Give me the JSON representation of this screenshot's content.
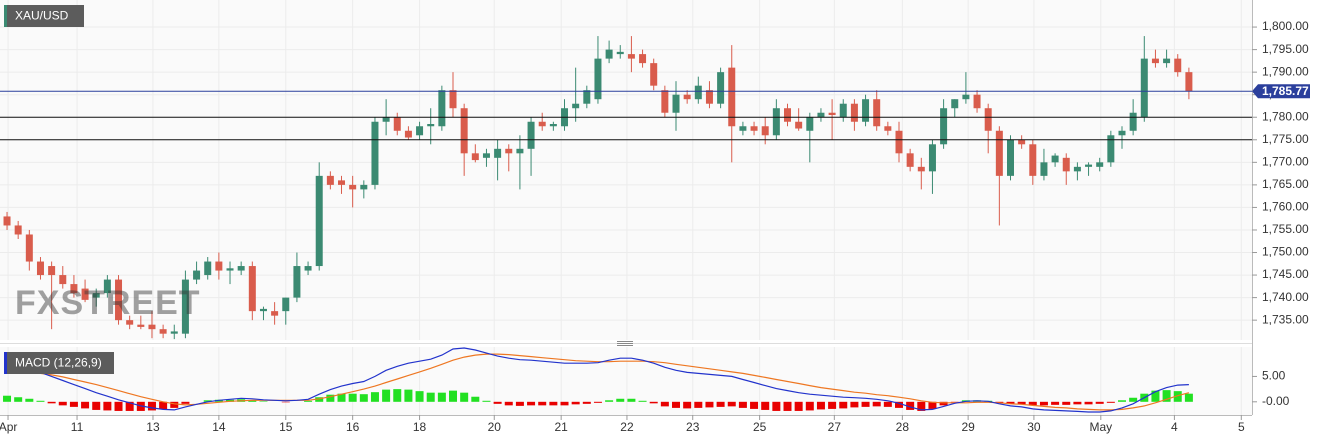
{
  "chart_data": [
    {
      "type": "candlestick",
      "title": "XAU/USD",
      "watermark": "FXSTREET",
      "open": [
        1758,
        1756,
        1754,
        1748,
        1747,
        1745,
        1743,
        1742,
        1740,
        1741,
        1744,
        1735,
        1734,
        1734,
        1733,
        1732,
        1732,
        1744,
        1745,
        1748,
        1746,
        1746,
        1747,
        1737,
        1737,
        1737,
        1740,
        1746,
        1747,
        1767,
        1766,
        1765,
        1764,
        1765,
        1779,
        1780,
        1777,
        1776,
        1778,
        1778,
        1786,
        1782,
        1772,
        1771,
        1771,
        1773,
        1772,
        1773,
        1779,
        1778,
        1778,
        1782,
        1783,
        1784,
        1793,
        1794,
        1794,
        1794,
        1792,
        1786,
        1781,
        1785,
        1784,
        1786,
        1783,
        1791,
        1777,
        1778,
        1778,
        1776,
        1782,
        1779,
        1777,
        1780,
        1781,
        1780,
        1783,
        1779,
        1784,
        1778,
        1777,
        1772,
        1769,
        1768,
        1774,
        1782,
        1784,
        1785,
        1782,
        1777,
        1767,
        1775,
        1774,
        1767,
        1770,
        1771,
        1768,
        1769,
        1769,
        1770,
        1776,
        1777,
        1780,
        1793,
        1792,
        1793,
        1790
      ],
      "high": [
        1759,
        1757,
        1755,
        1749,
        1748,
        1747,
        1745,
        1744,
        1742,
        1745,
        1745,
        1736,
        1736,
        1737,
        1734,
        1734,
        1746,
        1748,
        1749,
        1750,
        1748,
        1748,
        1748,
        1738,
        1739,
        1740,
        1750,
        1748,
        1770,
        1768,
        1767,
        1767,
        1766,
        1780,
        1784,
        1781,
        1778,
        1779,
        1782,
        1787,
        1790,
        1783,
        1774,
        1773,
        1775,
        1774,
        1776,
        1780,
        1781,
        1779,
        1784,
        1791,
        1787,
        1798,
        1797,
        1796,
        1798,
        1795,
        1793,
        1787,
        1788,
        1786,
        1789,
        1788,
        1791,
        1796,
        1779,
        1779,
        1780,
        1784,
        1783,
        1782,
        1781,
        1782,
        1784,
        1784,
        1784,
        1785,
        1786,
        1779,
        1779,
        1773,
        1771,
        1775,
        1784,
        1784,
        1790,
        1786,
        1783,
        1778,
        1776,
        1776,
        1775,
        1773,
        1772,
        1772,
        1770,
        1770,
        1771,
        1777,
        1778,
        1784,
        1798,
        1795,
        1795,
        1794,
        1791
      ],
      "low": [
        1755,
        1753,
        1746,
        1744,
        1733,
        1742,
        1740,
        1739,
        1738,
        1740,
        1734,
        1733,
        1733,
        1731,
        1731,
        1730.8,
        1731,
        1743,
        1744,
        1744,
        1743,
        1745,
        1735,
        1735,
        1734,
        1734,
        1739,
        1745,
        1746,
        1764,
        1763,
        1760,
        1762,
        1764,
        1776,
        1776,
        1775,
        1775,
        1774,
        1777,
        1780,
        1767,
        1770,
        1769,
        1766,
        1768,
        1764,
        1767,
        1777,
        1777,
        1777,
        1779,
        1782,
        1783,
        1792,
        1793,
        1790,
        1791,
        1786,
        1780,
        1777,
        1783,
        1783,
        1782,
        1782,
        1770,
        1776,
        1776,
        1774,
        1775,
        1778,
        1777,
        1770,
        1779,
        1775,
        1779,
        1777,
        1778,
        1777,
        1776,
        1770,
        1768,
        1764,
        1763,
        1773,
        1780,
        1783,
        1781,
        1772,
        1756,
        1766,
        1773,
        1765,
        1766,
        1769,
        1765,
        1766,
        1767,
        1768,
        1769,
        1773,
        1776,
        1779,
        1791,
        1791,
        1789,
        1784
      ],
      "close": [
        1756,
        1754,
        1748,
        1745,
        1745,
        1743,
        1741,
        1739.5,
        1741,
        1744,
        1735,
        1734,
        1733.5,
        1733,
        1732,
        1732.5,
        1744,
        1746,
        1748,
        1746,
        1746.5,
        1747,
        1737,
        1737.5,
        1736,
        1740,
        1747,
        1747,
        1767,
        1765,
        1765,
        1764,
        1765,
        1779,
        1780,
        1777,
        1775.5,
        1778,
        1778.5,
        1786,
        1782,
        1772,
        1770.5,
        1772,
        1773,
        1772,
        1773,
        1779,
        1778,
        1778.5,
        1782,
        1783,
        1786,
        1793,
        1795,
        1794.5,
        1793,
        1792,
        1787,
        1781,
        1785,
        1784,
        1787,
        1783,
        1790,
        1778,
        1778,
        1777,
        1776,
        1782,
        1779,
        1777.5,
        1780,
        1781,
        1780.5,
        1783,
        1779,
        1784,
        1778,
        1777,
        1772,
        1769,
        1768,
        1774,
        1782,
        1784,
        1785,
        1782,
        1777,
        1767,
        1775,
        1774,
        1767,
        1770,
        1771.5,
        1768,
        1769,
        1769.5,
        1770,
        1776,
        1777,
        1781,
        1793,
        1792,
        1793,
        1790,
        1785.77
      ],
      "up_color": "#3b8a72",
      "down_color": "#d95c4c",
      "xlim": [
        -0.63,
        111.66
      ],
      "xticks": [
        {
          "value": 0.09,
          "label": "Apr"
        },
        {
          "value": 6.28,
          "label": "11"
        },
        {
          "value": 13.09,
          "label": "13"
        },
        {
          "value": 19.0,
          "label": "14"
        },
        {
          "value": 25.0,
          "label": "15"
        },
        {
          "value": 31.0,
          "label": "16"
        },
        {
          "value": 37.0,
          "label": "18"
        },
        {
          "value": 43.7,
          "label": "20"
        },
        {
          "value": 49.7,
          "label": "21"
        },
        {
          "value": 55.6,
          "label": "22"
        },
        {
          "value": 61.5,
          "label": "23"
        },
        {
          "value": 67.5,
          "label": "25"
        },
        {
          "value": 74.2,
          "label": "27"
        },
        {
          "value": 80.3,
          "label": "28"
        },
        {
          "value": 86.2,
          "label": "29"
        },
        {
          "value": 92.1,
          "label": "30"
        },
        {
          "value": 98.1,
          "label": "May"
        },
        {
          "value": 104.7,
          "label": "4"
        },
        {
          "value": 110.7,
          "label": "5"
        }
      ],
      "ylim": [
        1730.6,
        1806
      ],
      "yticks": [
        {
          "value": 1735,
          "label": "1,735.00"
        },
        {
          "value": 1740,
          "label": "1,740.00"
        },
        {
          "value": 1745,
          "label": "1,745.00"
        },
        {
          "value": 1750,
          "label": "1,750.00"
        },
        {
          "value": 1755,
          "label": "1,755.00"
        },
        {
          "value": 1760,
          "label": "1,760.00"
        },
        {
          "value": 1765,
          "label": "1,765.00"
        },
        {
          "value": 1770,
          "label": "1,770.00"
        },
        {
          "value": 1775,
          "label": "1,775.00"
        },
        {
          "value": 1780,
          "label": "1,780.00"
        },
        {
          "value": 1785,
          "label": "1,785.00"
        },
        {
          "value": 1790,
          "label": "1,790.00"
        },
        {
          "value": 1795,
          "label": "1,795.00"
        },
        {
          "value": 1800,
          "label": "1,800.00"
        }
      ],
      "grid": true,
      "levels": [
        1780,
        1775
      ],
      "level_color": "#111111",
      "last_price": {
        "value": 1785.77,
        "label": "1,785.77"
      },
      "last_price_color": "#2b3f9c"
    },
    {
      "type": "macd",
      "title": "MACD (12,26,9)",
      "histogram": [
        1.2,
        0.9,
        0.6,
        0.2,
        -0.3,
        -0.7,
        -1.0,
        -1.3,
        -1.6,
        -1.7,
        -1.8,
        -1.8,
        -1.8,
        -1.7,
        -1.5,
        -1.2,
        -0.4,
        0.0,
        0.3,
        0.4,
        0.4,
        0.5,
        0.3,
        0.1,
        0.0,
        -0.1,
        0.0,
        0.2,
        0.9,
        1.4,
        1.6,
        1.6,
        1.5,
        1.9,
        2.4,
        2.5,
        2.4,
        2.1,
        1.8,
        1.8,
        2.2,
        1.8,
        1.0,
        0.2,
        -0.4,
        -0.7,
        -0.8,
        -0.7,
        -0.7,
        -0.7,
        -0.7,
        -0.5,
        -0.4,
        -0.2,
        0.3,
        0.6,
        0.6,
        0.2,
        -0.3,
        -0.9,
        -1.2,
        -1.3,
        -1.2,
        -1.1,
        -1.0,
        -0.9,
        -1.2,
        -1.4,
        -1.6,
        -1.8,
        -1.8,
        -1.8,
        -1.7,
        -1.5,
        -1.4,
        -1.3,
        -1.1,
        -1.0,
        -0.9,
        -1.0,
        -1.2,
        -1.6,
        -1.8,
        -1.4,
        -0.7,
        -0.1,
        0.3,
        0.3,
        0.2,
        -0.2,
        -0.4,
        -0.5,
        -0.7,
        -0.7,
        -0.6,
        -0.6,
        -0.5,
        -0.5,
        -0.4,
        -0.2,
        0.3,
        0.8,
        1.6,
        2.2,
        2.3,
        2.1,
        1.6
      ],
      "hist_up_color": "#22e022",
      "hist_down_color": "#e80000",
      "macd": {
        "color": "#2233cc",
        "values": [
          7.4,
          7.0,
          6.5,
          5.8,
          5.0,
          4.2,
          3.4,
          2.6,
          1.8,
          1.1,
          0.4,
          -0.2,
          -0.8,
          -1.2,
          -1.5,
          -1.6,
          -1.0,
          -0.5,
          0.0,
          0.3,
          0.5,
          0.7,
          0.6,
          0.4,
          0.3,
          0.2,
          0.3,
          0.5,
          1.5,
          2.4,
          3.1,
          3.6,
          4.0,
          5.0,
          6.2,
          7.0,
          7.6,
          8.0,
          8.4,
          9.2,
          10.4,
          10.6,
          10.2,
          9.6,
          9.0,
          8.6,
          8.3,
          8.2,
          8.0,
          7.8,
          7.6,
          7.6,
          7.6,
          7.7,
          8.2,
          8.6,
          8.6,
          8.2,
          7.6,
          6.8,
          6.2,
          5.8,
          5.6,
          5.4,
          5.2,
          5.0,
          4.4,
          3.8,
          3.2,
          2.6,
          2.2,
          1.8,
          1.5,
          1.3,
          1.1,
          0.9,
          0.8,
          0.7,
          0.5,
          0.2,
          -0.3,
          -1.0,
          -1.6,
          -1.5,
          -0.9,
          -0.3,
          0.1,
          0.2,
          0.1,
          -0.4,
          -0.8,
          -1.0,
          -1.4,
          -1.6,
          -1.7,
          -1.8,
          -1.9,
          -2.0,
          -2.0,
          -1.8,
          -1.2,
          -0.4,
          0.8,
          2.0,
          2.8,
          3.3,
          3.4
        ]
      },
      "signal": {
        "color": "#ee7722",
        "values": [
          6.2,
          6.1,
          5.9,
          5.6,
          5.3,
          4.9,
          4.4,
          3.9,
          3.4,
          2.8,
          2.2,
          1.6,
          1.0,
          0.5,
          0.0,
          -0.4,
          -0.6,
          -0.5,
          -0.3,
          -0.1,
          0.1,
          0.2,
          0.3,
          0.3,
          0.3,
          0.3,
          0.3,
          0.3,
          0.6,
          1.0,
          1.5,
          2.0,
          2.5,
          3.1,
          3.8,
          4.5,
          5.2,
          5.9,
          6.6,
          7.4,
          8.2,
          8.8,
          9.2,
          9.4,
          9.4,
          9.3,
          9.1,
          8.9,
          8.7,
          8.5,
          8.3,
          8.1,
          8.0,
          7.9,
          7.9,
          8.0,
          8.0,
          8.0,
          7.9,
          7.7,
          7.4,
          7.1,
          6.8,
          6.5,
          6.2,
          5.9,
          5.6,
          5.2,
          4.8,
          4.4,
          4.0,
          3.6,
          3.2,
          2.8,
          2.5,
          2.2,
          1.9,
          1.7,
          1.4,
          1.2,
          0.9,
          0.6,
          0.2,
          -0.1,
          -0.2,
          -0.2,
          -0.2,
          -0.1,
          -0.1,
          -0.2,
          -0.4,
          -0.5,
          -0.7,
          -0.9,
          -1.1,
          -1.2,
          -1.4,
          -1.5,
          -1.6,
          -1.6,
          -1.5,
          -1.2,
          -0.8,
          -0.2,
          0.5,
          1.2,
          1.8
        ]
      },
      "ylim": [
        -2.6,
        10.8
      ],
      "yticks": [
        {
          "value": 5,
          "label": "5.00"
        },
        {
          "value": 0,
          "label": "-0.00"
        }
      ]
    }
  ]
}
